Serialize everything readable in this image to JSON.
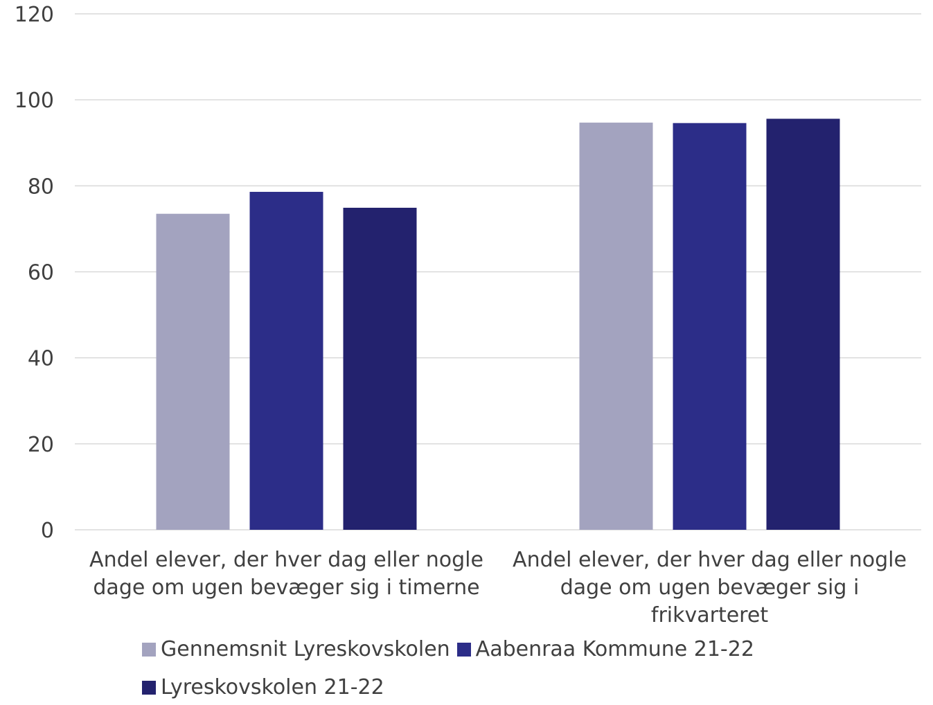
{
  "chart_data": {
    "type": "bar",
    "categories": [
      [
        "Andel elever, der hver dag eller nogle",
        "dage om ugen bevæger sig i timerne"
      ],
      [
        "Andel elever, der hver dag eller nogle",
        "dage om ugen bevæger sig i",
        "frikvarteret"
      ]
    ],
    "series": [
      {
        "name": "Gennemsnit Lyreskovskolen",
        "color": "#a3a3bf",
        "values": [
          73.5,
          94.7
        ]
      },
      {
        "name": "Aabenraa Kommune 21-22",
        "color": "#2c2d88",
        "values": [
          78.6,
          94.6
        ]
      },
      {
        "name": "Lyreskovskolen 21-22",
        "color": "#23226e",
        "values": [
          74.9,
          95.6
        ]
      }
    ],
    "ylim": [
      0,
      120
    ],
    "yticks": [
      "0",
      "20",
      "40",
      "60",
      "80",
      "100",
      "120"
    ],
    "title": "",
    "xlabel": "",
    "ylabel": "",
    "grid": true,
    "legend_position": "bottom"
  }
}
